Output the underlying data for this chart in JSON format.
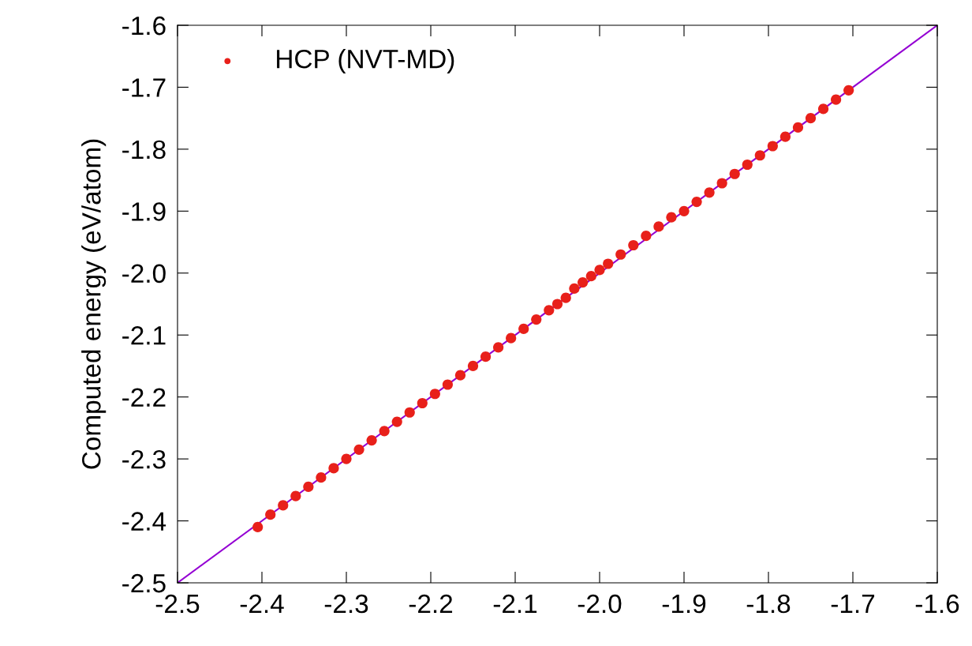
{
  "chart_data": {
    "type": "scatter",
    "ylabel": "Computed energy (eV/atom)",
    "xlim": [
      -2.5,
      -1.6
    ],
    "ylim": [
      -2.5,
      -1.6
    ],
    "xticks": [
      -2.5,
      -2.4,
      -2.3,
      -2.2,
      -2.1,
      {
        "value": -2.0,
        "label": "-2.0"
      },
      -1.9,
      -1.8,
      -1.7,
      -1.6
    ],
    "yticks": [
      -2.5,
      -2.4,
      -2.3,
      -2.2,
      -2.1,
      {
        "value": -2.0,
        "label": "-2.0"
      },
      -1.9,
      -1.8,
      -1.7,
      -1.6
    ],
    "grid": false,
    "legend": "top left",
    "series": [
      {
        "type": "line",
        "marker": "none",
        "color": "#9400d3",
        "x": [
          -2.5,
          -1.6
        ],
        "values": [
          -2.5,
          -1.6
        ]
      },
      {
        "name": "HCP (NVT-MD)",
        "marker": "circle",
        "color": "#e8201a",
        "x": [
          -2.405,
          -2.39,
          -2.375,
          -2.36,
          -2.345,
          -2.33,
          -2.315,
          -2.3,
          -2.285,
          -2.27,
          -2.255,
          -2.24,
          -2.225,
          -2.21,
          -2.195,
          -2.18,
          -2.165,
          -2.15,
          -2.135,
          -2.12,
          -2.105,
          -2.09,
          -2.075,
          -2.06,
          -2.05,
          -2.04,
          -2.03,
          -2.02,
          -2.01,
          -2.0,
          -1.99,
          -1.975,
          -1.96,
          -1.945,
          -1.93,
          -1.915,
          -1.9,
          -1.885,
          -1.87,
          -1.855,
          -1.84,
          -1.825,
          -1.81,
          -1.795,
          -1.78,
          -1.765,
          -1.75,
          -1.735,
          -1.72,
          -1.705
        ],
        "values": [
          -2.41,
          -2.39,
          -2.375,
          -2.36,
          -2.345,
          -2.33,
          -2.315,
          -2.3,
          -2.285,
          -2.27,
          -2.255,
          -2.24,
          -2.225,
          -2.21,
          -2.195,
          -2.18,
          -2.165,
          -2.15,
          -2.135,
          -2.12,
          -2.105,
          -2.09,
          -2.075,
          -2.06,
          -2.05,
          -2.04,
          -2.025,
          -2.015,
          -2.005,
          -1.995,
          -1.985,
          -1.97,
          -1.955,
          -1.94,
          -1.925,
          -1.91,
          -1.9,
          -1.885,
          -1.87,
          -1.855,
          -1.84,
          -1.825,
          -1.81,
          -1.795,
          -1.78,
          -1.765,
          -1.75,
          -1.735,
          -1.72,
          -1.705
        ]
      }
    ]
  }
}
